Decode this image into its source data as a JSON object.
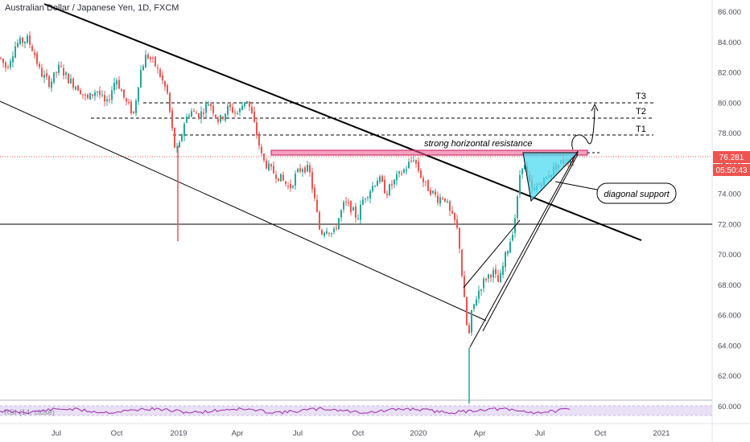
{
  "header": {
    "title": "Australian Dollar / Japanese Yen, 1D, FXCM"
  },
  "price_axis": {
    "labels": [
      "86.000",
      "84.000",
      "82.000",
      "80.000",
      "78.000",
      "76.000",
      "74.000",
      "72.000",
      "70.000",
      "68.000",
      "66.000",
      "64.000",
      "62.000",
      "60.000"
    ],
    "current_price": "76.281",
    "countdown": "05:50:43"
  },
  "time_axis": {
    "labels": [
      "Jul",
      "Oct",
      "2019",
      "Apr",
      "Jul",
      "Oct",
      "2020",
      "Apr",
      "Jul",
      "Oct",
      "2021"
    ]
  },
  "annotations": {
    "resistance": "strong horizontal resistance",
    "support": "diagonal support",
    "t1": "T1",
    "t2": "T2",
    "t3": "T3"
  },
  "rsi": {
    "label": "RSI (14, close)"
  },
  "colors": {
    "up": "#26a69a",
    "down": "#ef5350",
    "resistance_zone": "#f06292",
    "triangle_fill": "#4dd9f0",
    "rsi_line": "#9c27b0",
    "price_label_bg": "#ef5350"
  },
  "chart_data": {
    "type": "candlestick",
    "title": "Australian Dollar / Japanese Yen, 1D, FXCM",
    "x_ticks": [
      "Jul",
      "Oct",
      "2019",
      "Apr",
      "Jul",
      "Oct",
      "2020",
      "Apr",
      "Jul",
      "Oct",
      "2021"
    ],
    "ylim": [
      60,
      86.5
    ],
    "current_price": 76.281,
    "levels": {
      "horizontal_support": 71.8,
      "resistance_zone": [
        76.35,
        76.7
      ],
      "T1": 77.7,
      "T2": 78.9,
      "T3": 79.95
    },
    "price_path": [
      [
        0,
        83.0
      ],
      [
        8,
        82.3
      ],
      [
        20,
        83.9
      ],
      [
        34,
        84.2
      ],
      [
        42,
        83.4
      ],
      [
        50,
        82.0
      ],
      [
        62,
        81.3
      ],
      [
        74,
        82.4
      ],
      [
        86,
        81.5
      ],
      [
        98,
        81.0
      ],
      [
        108,
        80.2
      ],
      [
        120,
        80.9
      ],
      [
        132,
        79.8
      ],
      [
        144,
        81.7
      ],
      [
        156,
        80.1
      ],
      [
        166,
        79.3
      ],
      [
        174,
        82.0
      ],
      [
        182,
        83.2
      ],
      [
        192,
        82.6
      ],
      [
        200,
        81.7
      ],
      [
        208,
        80.6
      ],
      [
        214,
        78.2
      ],
      [
        218,
        76.8
      ],
      [
        222,
        76.9
      ],
      [
        228,
        78.6
      ],
      [
        236,
        79.5
      ],
      [
        248,
        79.2
      ],
      [
        260,
        80.1
      ],
      [
        272,
        78.8
      ],
      [
        284,
        79.7
      ],
      [
        296,
        79.3
      ],
      [
        306,
        80.4
      ],
      [
        312,
        79.4
      ],
      [
        318,
        78.2
      ],
      [
        326,
        76.3
      ],
      [
        336,
        75.6
      ],
      [
        348,
        75.1
      ],
      [
        360,
        74.4
      ],
      [
        368,
        75.3
      ],
      [
        376,
        75.8
      ],
      [
        384,
        75.6
      ],
      [
        390,
        73.9
      ],
      [
        398,
        71.4
      ],
      [
        406,
        71.8
      ],
      [
        414,
        71.3
      ],
      [
        420,
        72.3
      ],
      [
        428,
        73.4
      ],
      [
        436,
        73.1
      ],
      [
        444,
        72.4
      ],
      [
        452,
        73.8
      ],
      [
        460,
        74.3
      ],
      [
        470,
        75.1
      ],
      [
        480,
        74.1
      ],
      [
        492,
        75.0
      ],
      [
        504,
        75.7
      ],
      [
        514,
        76.4
      ],
      [
        520,
        75.6
      ],
      [
        528,
        74.6
      ],
      [
        536,
        74.2
      ],
      [
        544,
        73.7
      ],
      [
        552,
        73.9
      ],
      [
        560,
        72.6
      ],
      [
        566,
        72.1
      ],
      [
        570,
        71.2
      ],
      [
        574,
        68.7
      ],
      [
        578,
        66.4
      ],
      [
        582,
        64.3
      ],
      [
        586,
        66.1
      ],
      [
        590,
        66.9
      ],
      [
        596,
        67.8
      ],
      [
        604,
        68.5
      ],
      [
        612,
        68.9
      ],
      [
        620,
        68.1
      ],
      [
        628,
        69.9
      ],
      [
        636,
        71.3
      ],
      [
        642,
        73.1
      ],
      [
        646,
        75.3
      ],
      [
        650,
        76.2
      ],
      [
        656,
        74.9
      ],
      [
        662,
        74.1
      ],
      [
        668,
        74.6
      ],
      [
        676,
        74.9
      ],
      [
        684,
        75.4
      ],
      [
        692,
        75.9
      ],
      [
        700,
        76.2
      ],
      [
        708,
        76.3
      ],
      [
        712,
        76.281
      ]
    ],
    "wick_spikes": [
      {
        "x_note": "early Jan 2019 flash crash",
        "low": 70.9
      },
      {
        "x_note": "March 2020 low",
        "low": 60.2
      }
    ]
  }
}
